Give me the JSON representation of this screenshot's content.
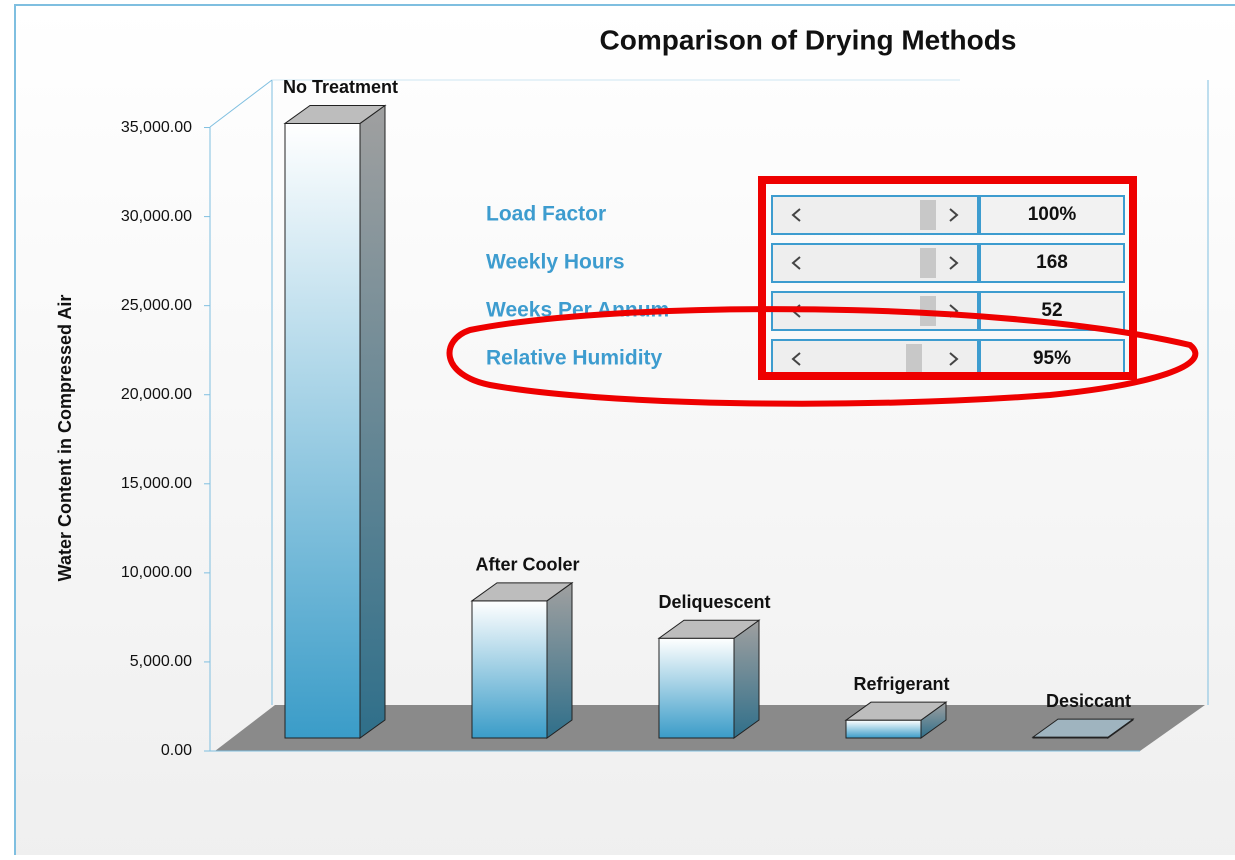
{
  "chart_data": {
    "type": "bar3d",
    "title": "Comparison of Drying Methods",
    "y_label": "Water Content in Compressed Air",
    "categories": [
      "No Treatment",
      "After Cooler",
      "Deliquescent",
      "Refrigerant",
      "Desiccant"
    ],
    "values": [
      34500,
      7700,
      5600,
      1000,
      50
    ],
    "ylim": [
      0,
      37500
    ],
    "yticks": [
      {
        "value": 0,
        "label": "0.00"
      },
      {
        "value": 5000,
        "label": "5,000.00"
      },
      {
        "value": 10000,
        "label": "10,000.00"
      },
      {
        "value": 15000,
        "label": "15,000.00"
      },
      {
        "value": 20000,
        "label": "20,000.00"
      },
      {
        "value": 25000,
        "label": "25,000.00"
      },
      {
        "value": 30000,
        "label": "30,000.00"
      },
      {
        "value": 35000,
        "label": "35,000.00"
      }
    ]
  },
  "controls": [
    {
      "label": "Load Factor",
      "value": "100%"
    },
    {
      "label": "Weekly Hours",
      "value": "168"
    },
    {
      "label": "Weeks Per Annum",
      "value": "52"
    },
    {
      "label": "Relative Humidity",
      "value": "95%"
    }
  ]
}
